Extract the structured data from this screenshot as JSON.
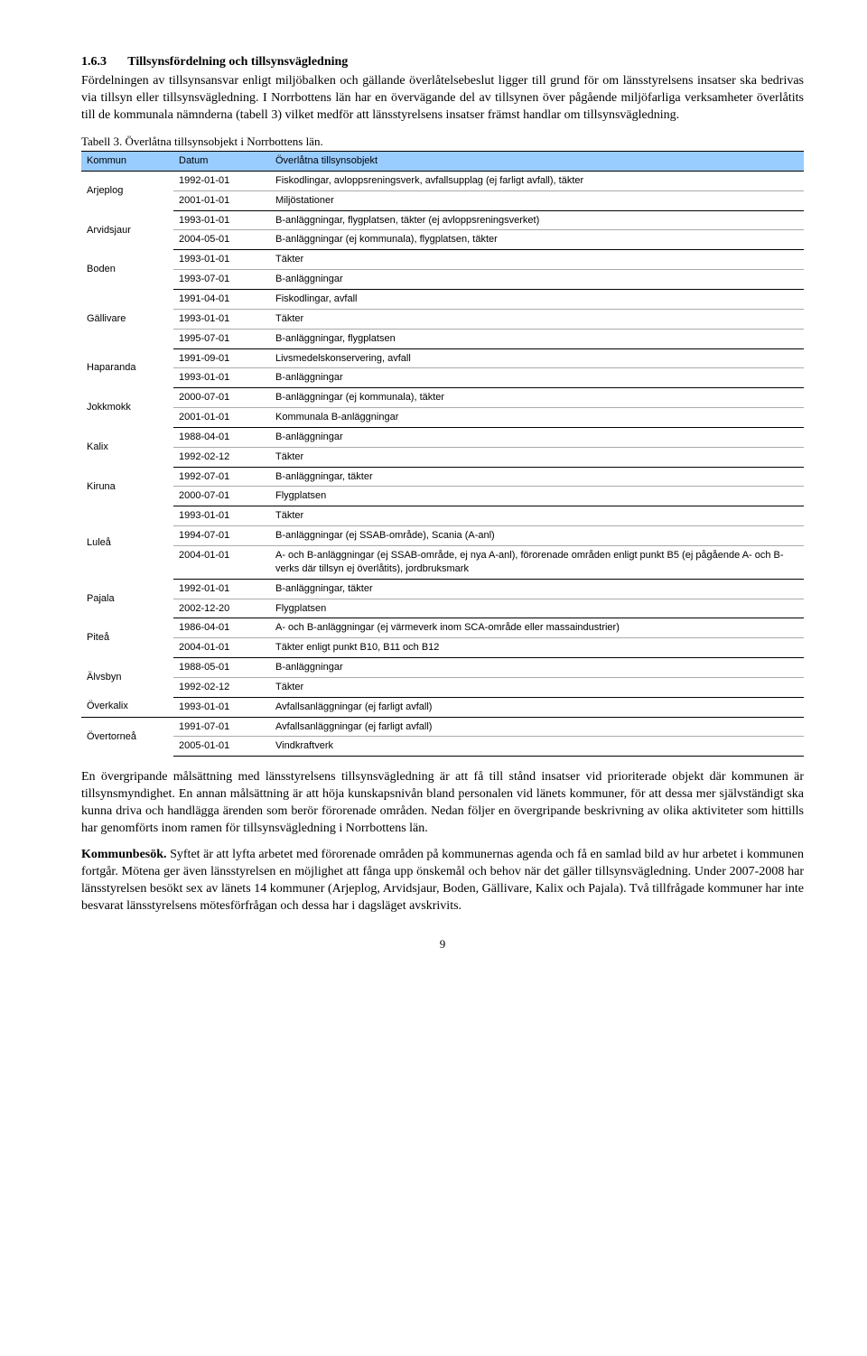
{
  "heading": {
    "number": "1.6.3",
    "title": "Tillsynsfördelning och tillsynsvägledning"
  },
  "intro": "Fördelningen av tillsynsansvar enligt miljöbalken och gällande överlåtelsebeslut ligger till grund för om länsstyrelsens insatser ska bedrivas via tillsyn eller tillsynsvägledning. I Norrbottens län har en övervägande del av tillsynen över pågående miljöfarliga verksamheter överlåtits till de kommunala nämnderna (tabell 3) vilket medför att länsstyrelsens insatser främst handlar om tillsynsvägledning.",
  "tableCaption": "Tabell 3. Överlåtna tillsynsobjekt i Norrbottens län.",
  "headerBg": "#99ccff",
  "columns": [
    "Kommun",
    "Datum",
    "Överlåtna tillsynsobjekt"
  ],
  "rows": [
    {
      "kommun": "Arjeplog",
      "entries": [
        {
          "date": "1992-01-01",
          "desc": "Fiskodlingar, avloppsreningsverk, avfallsupplag (ej farligt avfall), täkter"
        },
        {
          "date": "2001-01-01",
          "desc": "Miljöstationer"
        }
      ]
    },
    {
      "kommun": "Arvidsjaur",
      "entries": [
        {
          "date": "1993-01-01",
          "desc": "B-anläggningar, flygplatsen, täkter (ej avloppsreningsverket)"
        },
        {
          "date": "2004-05-01",
          "desc": "B-anläggningar (ej kommunala), flygplatsen, täkter"
        }
      ]
    },
    {
      "kommun": "Boden",
      "entries": [
        {
          "date": "1993-01-01",
          "desc": "Täkter"
        },
        {
          "date": "1993-07-01",
          "desc": "B-anläggningar"
        }
      ]
    },
    {
      "kommun": "Gällivare",
      "entries": [
        {
          "date": "1991-04-01",
          "desc": "Fiskodlingar, avfall"
        },
        {
          "date": "1993-01-01",
          "desc": "Täkter"
        },
        {
          "date": "1995-07-01",
          "desc": "B-anläggningar, flygplatsen"
        }
      ]
    },
    {
      "kommun": "Haparanda",
      "entries": [
        {
          "date": "1991-09-01",
          "desc": "Livsmedelskonservering, avfall"
        },
        {
          "date": "1993-01-01",
          "desc": "B-anläggningar"
        }
      ]
    },
    {
      "kommun": "Jokkmokk",
      "entries": [
        {
          "date": "2000-07-01",
          "desc": "B-anläggningar (ej kommunala), täkter"
        },
        {
          "date": "2001-01-01",
          "desc": "Kommunala B-anläggningar"
        }
      ]
    },
    {
      "kommun": "Kalix",
      "entries": [
        {
          "date": "1988-04-01",
          "desc": "B-anläggningar"
        },
        {
          "date": "1992-02-12",
          "desc": "Täkter"
        }
      ]
    },
    {
      "kommun": "Kiruna",
      "entries": [
        {
          "date": "1992-07-01",
          "desc": "B-anläggningar, täkter"
        },
        {
          "date": "2000-07-01",
          "desc": "Flygplatsen"
        }
      ]
    },
    {
      "kommun": "Luleå",
      "entries": [
        {
          "date": "1993-01-01",
          "desc": "Täkter"
        },
        {
          "date": "1994-07-01",
          "desc": "B-anläggningar (ej SSAB-område), Scania (A-anl)"
        },
        {
          "date": "2004-01-01",
          "desc": "A- och B-anläggningar (ej SSAB-område, ej nya A-anl), förorenade områden enligt punkt B5 (ej pågående A- och B-verks där tillsyn ej överlåtits), jordbruksmark"
        }
      ]
    },
    {
      "kommun": "Pajala",
      "entries": [
        {
          "date": "1992-01-01",
          "desc": "B-anläggningar, täkter"
        },
        {
          "date": "2002-12-20",
          "desc": "Flygplatsen"
        }
      ]
    },
    {
      "kommun": "Piteå",
      "entries": [
        {
          "date": "1986-04-01",
          "desc": "A- och B-anläggningar (ej värmeverk inom SCA-område eller massaindustrier)"
        },
        {
          "date": "2004-01-01",
          "desc": "Täkter enligt punkt B10, B11 och B12"
        }
      ]
    },
    {
      "kommun": "Älvsbyn",
      "entries": [
        {
          "date": "1988-05-01",
          "desc": "B-anläggningar"
        },
        {
          "date": "1992-02-12",
          "desc": "Täkter"
        }
      ]
    },
    {
      "kommun": "Överkalix",
      "entries": [
        {
          "date": "1993-01-01",
          "desc": "Avfallsanläggningar (ej farligt avfall)"
        }
      ]
    },
    {
      "kommun": "Övertorneå",
      "entries": [
        {
          "date": "1991-07-01",
          "desc": "Avfallsanläggningar (ej farligt avfall)"
        },
        {
          "date": "2005-01-01",
          "desc": "Vindkraftverk"
        }
      ]
    }
  ],
  "para2": "En övergripande målsättning med länsstyrelsens tillsynsvägledning är att få till stånd insatser vid prioriterade objekt där kommunen är tillsynsmyndighet. En annan målsättning är att höja kunskapsnivån bland personalen vid länets kommuner, för att dessa mer självständigt ska kunna driva och handlägga ärenden som berör förorenade områden. Nedan följer en övergripande beskrivning av olika aktiviteter som hittills har genomförts inom ramen för tillsynsvägledning i Norrbottens län.",
  "para3label": "Kommunbesök.",
  "para3": " Syftet är att lyfta arbetet med förorenade områden på kommunernas agenda och få en samlad bild av hur arbetet i kommunen fortgår. Mötena ger även länsstyrelsen en möjlighet att fånga upp önskemål och behov när det gäller tillsynsvägledning. Under 2007-2008 har länsstyrelsen besökt sex av länets 14 kommuner (Arjeplog, Arvidsjaur, Boden, Gällivare, Kalix och Pajala). Två tillfrågade kommuner har inte besvarat länsstyrelsens mötesförfrågan och dessa har i dagsläget avskrivits.",
  "pageNumber": "9"
}
